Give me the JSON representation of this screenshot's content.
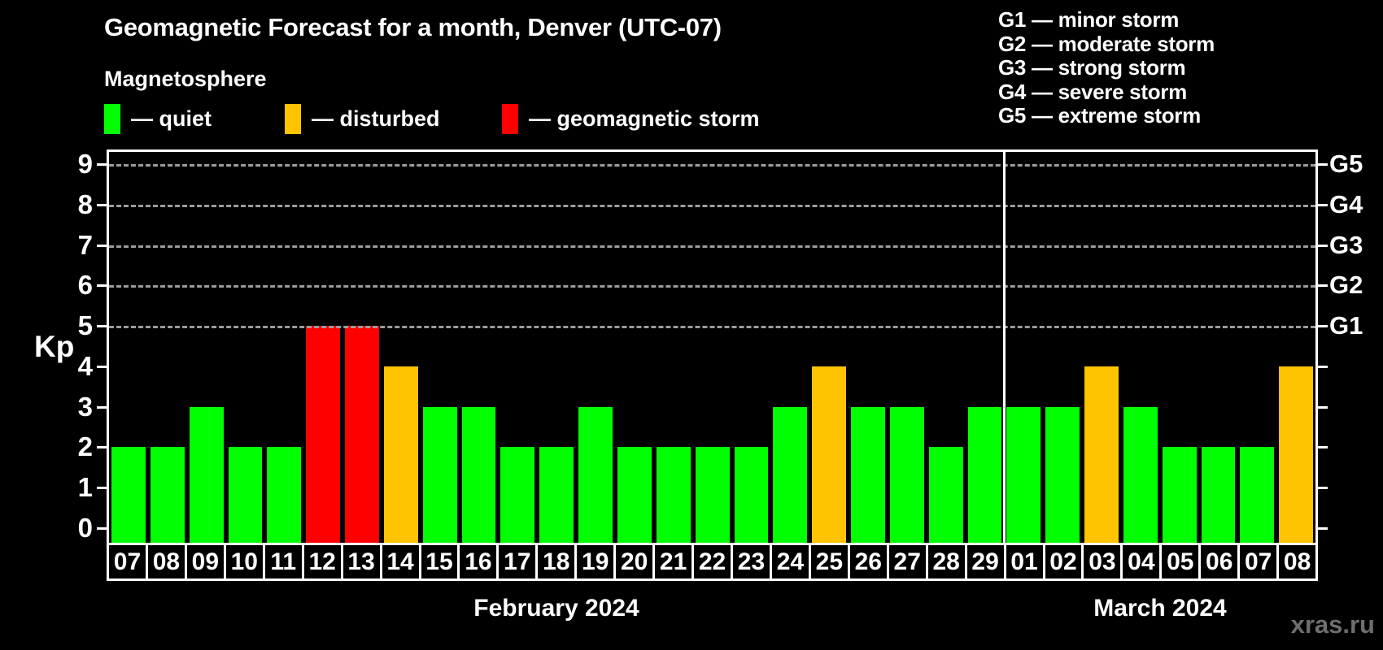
{
  "legend": {
    "heading": "Magnetosphere",
    "items": [
      {
        "status": "quiet",
        "label": "— quiet"
      },
      {
        "status": "disturbed",
        "label": "— disturbed"
      },
      {
        "status": "storm",
        "label": "— geomagnetic storm"
      }
    ]
  },
  "g_legend": [
    {
      "code": "G1",
      "desc": "minor storm"
    },
    {
      "code": "G2",
      "desc": "moderate storm"
    },
    {
      "code": "G3",
      "desc": "strong storm"
    },
    {
      "code": "G4",
      "desc": "severe storm"
    },
    {
      "code": "G5",
      "desc": "extreme storm"
    }
  ],
  "colors": {
    "quiet": "#00ff00",
    "disturbed": "#ffc300",
    "storm": "#ff0000",
    "axis": "#ffffff",
    "gridline": "#9c9c9c",
    "watermark": "#6e6e6e"
  },
  "watermark": "xras.ru",
  "chart_data": {
    "type": "bar",
    "title": "Geomagnetic Forecast for a month, Denver (UTC-07)",
    "ylabel": "Kp",
    "ylim": [
      0,
      9
    ],
    "y_ticks": [
      0,
      1,
      2,
      3,
      4,
      5,
      6,
      7,
      8,
      9
    ],
    "grid": "dashed horizontal lines at Kp 5-9",
    "right_axis_labels": [
      {
        "label": "G5",
        "kp": 9
      },
      {
        "label": "G4",
        "kp": 8
      },
      {
        "label": "G3",
        "kp": 7
      },
      {
        "label": "G2",
        "kp": 6
      },
      {
        "label": "G1",
        "kp": 5
      }
    ],
    "months": [
      {
        "name": "February 2024",
        "days": 23
      },
      {
        "name": "March 2024",
        "days": 8
      }
    ],
    "bars": [
      {
        "month": "February 2024",
        "day": "07",
        "kp": 2,
        "status": "quiet"
      },
      {
        "month": "February 2024",
        "day": "08",
        "kp": 2,
        "status": "quiet"
      },
      {
        "month": "February 2024",
        "day": "09",
        "kp": 3,
        "status": "quiet"
      },
      {
        "month": "February 2024",
        "day": "10",
        "kp": 2,
        "status": "quiet"
      },
      {
        "month": "February 2024",
        "day": "11",
        "kp": 2,
        "status": "quiet"
      },
      {
        "month": "February 2024",
        "day": "12",
        "kp": 5,
        "status": "storm"
      },
      {
        "month": "February 2024",
        "day": "13",
        "kp": 5,
        "status": "storm"
      },
      {
        "month": "February 2024",
        "day": "14",
        "kp": 4,
        "status": "disturbed"
      },
      {
        "month": "February 2024",
        "day": "15",
        "kp": 3,
        "status": "quiet"
      },
      {
        "month": "February 2024",
        "day": "16",
        "kp": 3,
        "status": "quiet"
      },
      {
        "month": "February 2024",
        "day": "17",
        "kp": 2,
        "status": "quiet"
      },
      {
        "month": "February 2024",
        "day": "18",
        "kp": 2,
        "status": "quiet"
      },
      {
        "month": "February 2024",
        "day": "19",
        "kp": 3,
        "status": "quiet"
      },
      {
        "month": "February 2024",
        "day": "20",
        "kp": 2,
        "status": "quiet"
      },
      {
        "month": "February 2024",
        "day": "21",
        "kp": 2,
        "status": "quiet"
      },
      {
        "month": "February 2024",
        "day": "22",
        "kp": 2,
        "status": "quiet"
      },
      {
        "month": "February 2024",
        "day": "23",
        "kp": 2,
        "status": "quiet"
      },
      {
        "month": "February 2024",
        "day": "24",
        "kp": 3,
        "status": "quiet"
      },
      {
        "month": "February 2024",
        "day": "25",
        "kp": 4,
        "status": "disturbed"
      },
      {
        "month": "February 2024",
        "day": "26",
        "kp": 3,
        "status": "quiet"
      },
      {
        "month": "February 2024",
        "day": "27",
        "kp": 3,
        "status": "quiet"
      },
      {
        "month": "February 2024",
        "day": "28",
        "kp": 2,
        "status": "quiet"
      },
      {
        "month": "February 2024",
        "day": "29",
        "kp": 3,
        "status": "quiet"
      },
      {
        "month": "March 2024",
        "day": "01",
        "kp": 3,
        "status": "quiet"
      },
      {
        "month": "March 2024",
        "day": "02",
        "kp": 3,
        "status": "quiet"
      },
      {
        "month": "March 2024",
        "day": "03",
        "kp": 4,
        "status": "disturbed"
      },
      {
        "month": "March 2024",
        "day": "04",
        "kp": 3,
        "status": "quiet"
      },
      {
        "month": "March 2024",
        "day": "05",
        "kp": 2,
        "status": "quiet"
      },
      {
        "month": "March 2024",
        "day": "06",
        "kp": 2,
        "status": "quiet"
      },
      {
        "month": "March 2024",
        "day": "07",
        "kp": 2,
        "status": "quiet"
      },
      {
        "month": "March 2024",
        "day": "08",
        "kp": 4,
        "status": "disturbed"
      }
    ]
  }
}
